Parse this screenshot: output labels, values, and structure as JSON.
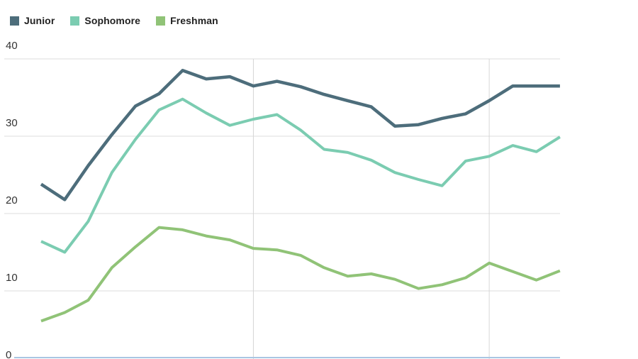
{
  "legend": [
    {
      "label": "Junior",
      "color": "#4d6d7b"
    },
    {
      "label": "Sophomore",
      "color": "#7bccb1"
    },
    {
      "label": "Freshman",
      "color": "#90c377"
    }
  ],
  "axis": {
    "y_tick_labels": [
      "40",
      "30",
      "20",
      "10",
      "0"
    ],
    "tick_color": "#333333",
    "h_gridline_color": "#dcdcdc",
    "v_gridline_color": "#d6d6d6",
    "baseline_color": "#a9c6e3"
  },
  "chart_data": {
    "type": "line",
    "title": "",
    "xlabel": "",
    "ylabel": "",
    "ylim": [
      0,
      40
    ],
    "yticks": [
      40,
      30,
      20,
      10,
      0
    ],
    "grid": "horizontal gridlines at 10,20,30,40; two vertical gridlines at x index 10 and 20 of 23; y=0 line cut off at bottom edge",
    "legend_position": "top-left",
    "x": [
      1,
      2,
      3,
      4,
      5,
      6,
      7,
      8,
      9,
      10,
      11,
      12,
      13,
      14,
      15,
      16,
      17,
      18,
      19,
      20,
      21,
      22,
      23
    ],
    "series": [
      {
        "name": "Junior",
        "color": "#4d6d7b",
        "values": [
          23.8,
          21.8,
          26.2,
          30.2,
          33.9,
          35.5,
          38.5,
          37.4,
          37.7,
          36.5,
          37.1,
          36.4,
          35.4,
          34.6,
          33.8,
          31.3,
          31.5,
          32.3,
          32.9,
          34.6,
          36.5,
          36.5,
          36.5
        ]
      },
      {
        "name": "Sophomore",
        "color": "#7bccb1",
        "values": [
          16.4,
          15.0,
          19.0,
          25.3,
          29.6,
          33.4,
          34.8,
          33.0,
          31.4,
          32.2,
          32.8,
          30.8,
          28.3,
          27.9,
          26.9,
          25.3,
          24.4,
          23.6,
          26.8,
          27.4,
          28.8,
          28.0,
          29.9
        ]
      },
      {
        "name": "Freshman",
        "color": "#90c377",
        "values": [
          6.1,
          7.2,
          8.8,
          13.0,
          15.7,
          18.2,
          17.9,
          17.1,
          16.6,
          15.5,
          15.3,
          14.6,
          13.0,
          11.9,
          12.2,
          11.5,
          10.3,
          10.8,
          11.7,
          13.6,
          12.5,
          11.4,
          12.6
        ]
      }
    ]
  }
}
